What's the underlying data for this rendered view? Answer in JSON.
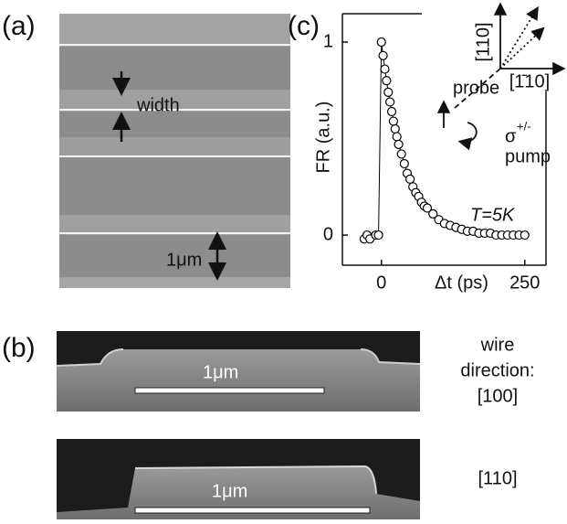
{
  "panels": {
    "a": {
      "label": "(a)",
      "width_label": "width",
      "scale_label": "1μm"
    },
    "b": {
      "label": "(b)",
      "images": [
        {
          "scale_label": "1μm",
          "direction": [
            "wire",
            "direction:",
            "[100]"
          ]
        },
        {
          "scale_label": "1μm",
          "direction": [
            "[110]"
          ]
        }
      ]
    },
    "c": {
      "label": "(c)"
    }
  },
  "chart_data": {
    "type": "scatter",
    "x_label": "Δt (ps)",
    "y_label": "FR (a.u.)",
    "annotations": {
      "temperature": "T=5K",
      "probe": "probe",
      "pump": "pump",
      "sigma": "σ",
      "sigma_sup": "+/-",
      "dir_110": "[110]",
      "dir_1bar10": "[1̄10]"
    },
    "color": "#000000",
    "x": [
      -30,
      -25,
      -20,
      -10,
      -5,
      0,
      3,
      6,
      9,
      12,
      15,
      18,
      21,
      24,
      27,
      30,
      35,
      40,
      45,
      50,
      55,
      60,
      65,
      70,
      75,
      80,
      90,
      100,
      110,
      120,
      130,
      140,
      150,
      160,
      170,
      180,
      190,
      200,
      210,
      220,
      230,
      240,
      250
    ],
    "values": [
      -0.02,
      0.0,
      -0.02,
      0.0,
      0.0,
      1.0,
      0.93,
      0.86,
      0.8,
      0.74,
      0.69,
      0.64,
      0.59,
      0.55,
      0.51,
      0.47,
      0.42,
      0.37,
      0.32,
      0.29,
      0.25,
      0.22,
      0.2,
      0.17,
      0.15,
      0.14,
      0.11,
      0.08,
      0.06,
      0.05,
      0.04,
      0.03,
      0.02,
      0.02,
      0.01,
      0.01,
      0.01,
      0.0,
      0.0,
      0.0,
      0.0,
      0.0,
      0.0
    ],
    "xlim": [
      -68,
      287
    ],
    "ylim": [
      -0.156,
      1.147
    ],
    "xticks": [
      0,
      250
    ],
    "yticks": [
      0,
      1
    ]
  }
}
